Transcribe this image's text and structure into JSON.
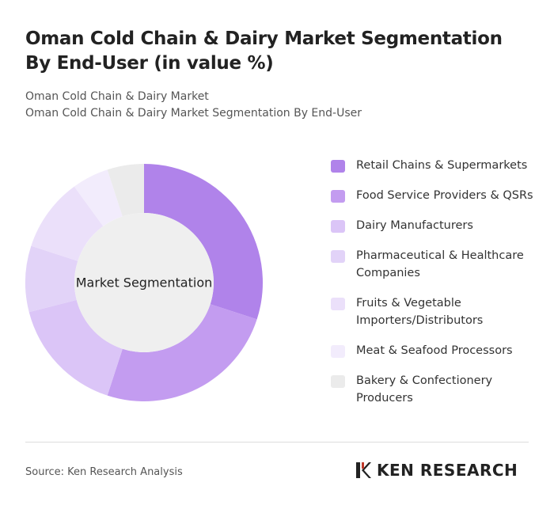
{
  "chart_data": {
    "type": "donut",
    "title": "Oman Cold Chain & Dairy Market Segmentation By End-User (in value %)",
    "subtitle": [
      "Oman Cold Chain & Dairy Market",
      "Oman Cold Chain & Dairy Market Segmentation By End-User"
    ],
    "center_label": "Market Segmentation",
    "categories": [
      "Retail Chains & Supermarkets",
      "Food Service Providers & QSRs",
      "Dairy Manufacturers",
      "Pharmaceutical & Healthcare Companies",
      "Fruits & Vegetable Importers/Distributors",
      "Meat & Seafood Processors",
      "Bakery & Confectionery Producers"
    ],
    "values": [
      30,
      25,
      16,
      9,
      10,
      5,
      5
    ],
    "colors": [
      "#b083ea",
      "#c39cf0",
      "#dbc5f7",
      "#e2d3f8",
      "#ebe0fa",
      "#f2ecfc",
      "#ebebeb"
    ],
    "legend": "right"
  },
  "source": "Source: Ken Research Analysis",
  "brand": "KEN RESEARCH"
}
